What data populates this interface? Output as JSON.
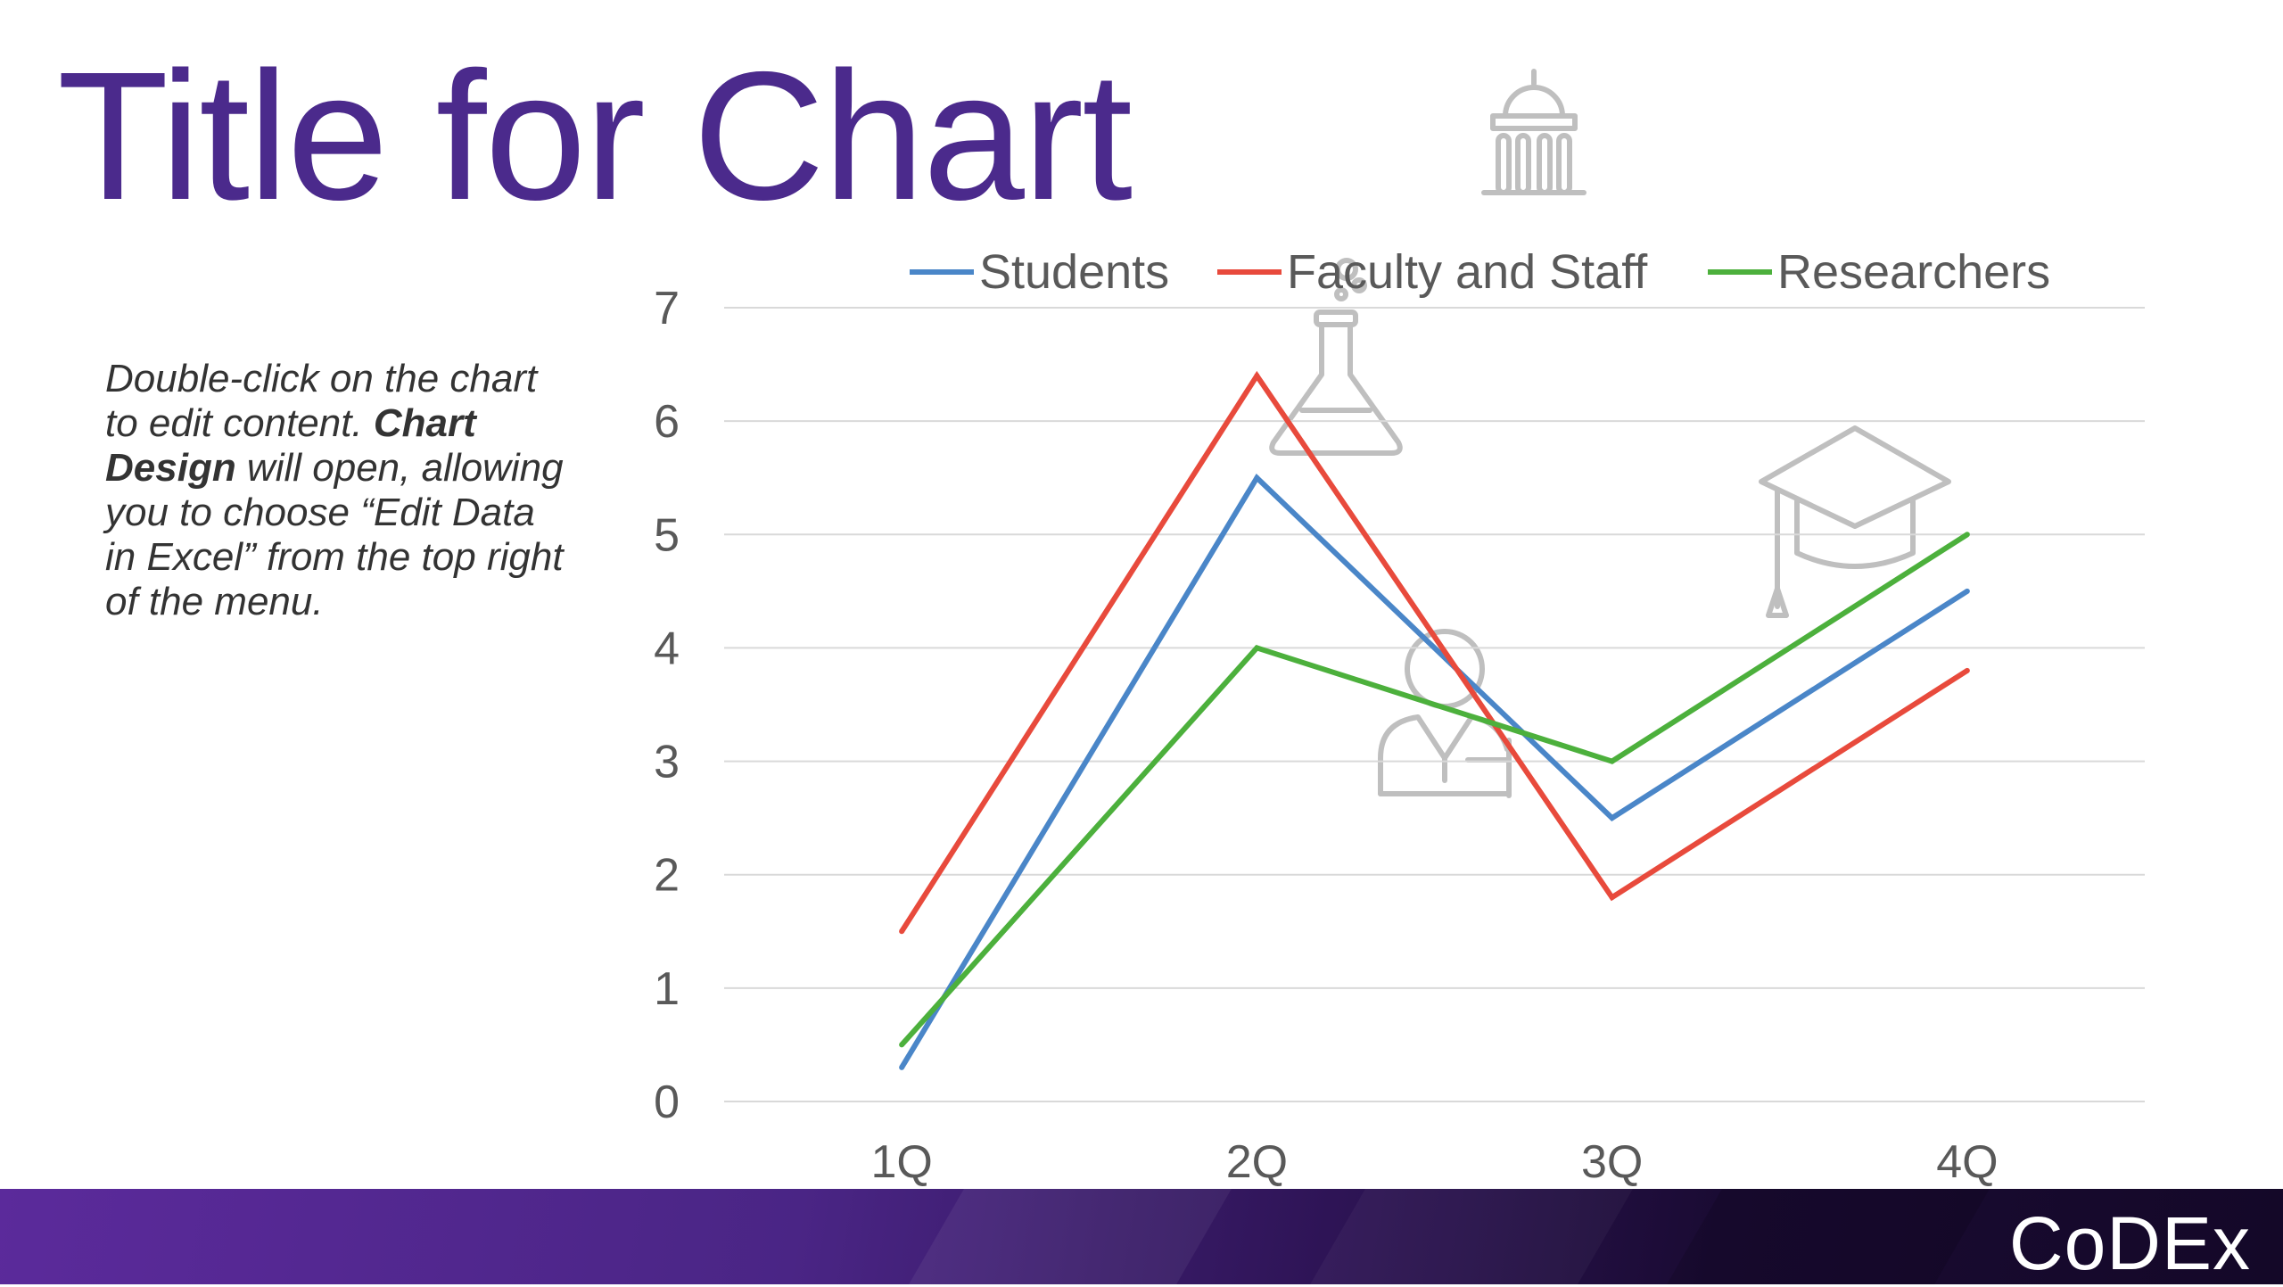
{
  "slide": {
    "title": "Title for Chart",
    "instructions": {
      "line1": "Double-click on the chart to edit content. ",
      "bold": "Chart Design",
      "line2": " will open, allowing you to choose “Edit Data in Excel” from the top right of the menu."
    },
    "brand": "CoDEx"
  },
  "colors": {
    "title": "#4b2a8c",
    "axis_text": "#595959",
    "grid": "#d9d9d9",
    "icon": "#bfbfbf"
  },
  "decorative_icons": [
    "university-building-icon",
    "chemistry-flask-icon",
    "researcher-person-icon",
    "graduation-cap-icon"
  ],
  "chart_data": {
    "type": "line",
    "title": "",
    "xlabel": "",
    "ylabel": "",
    "categories": [
      "1Q",
      "2Q",
      "3Q",
      "4Q"
    ],
    "ylim": [
      0,
      7
    ],
    "yticks": [
      0,
      1,
      2,
      3,
      4,
      5,
      6,
      7
    ],
    "grid": true,
    "legend": "top",
    "series": [
      {
        "name": "Students",
        "color": "#4a86c8",
        "values": [
          0.3,
          5.5,
          2.5,
          4.5
        ]
      },
      {
        "name": "Faculty and Staff",
        "color": "#e84a3c",
        "values": [
          1.5,
          6.4,
          1.8,
          3.8
        ]
      },
      {
        "name": "Researchers",
        "color": "#4cb03c",
        "values": [
          0.5,
          4.0,
          3.0,
          5.0
        ]
      }
    ]
  }
}
